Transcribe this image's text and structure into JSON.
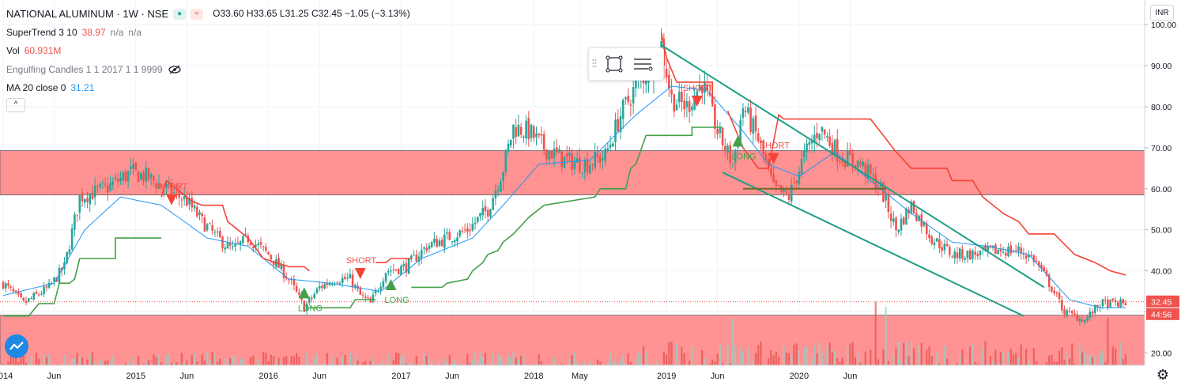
{
  "header": {
    "symbol": "NATIONAL ALUMINUM",
    "interval": "1W",
    "exchange": "NSE",
    "ohlc": {
      "o": "O33.60",
      "h": "H33.65",
      "l": "L31.25",
      "c": "C32.45",
      "chg": "−1.05 (−3.13%)"
    }
  },
  "indicators": [
    {
      "name": "SuperTrend 3 10",
      "value1": "38.97",
      "value2": "n/a",
      "value3": "n/a"
    },
    {
      "name": "Vol",
      "value1": "60.931M"
    },
    {
      "name": "Engulfing Candles 1 1 2017 1 1 9999"
    },
    {
      "name": "MA 20 close 0",
      "value1": "31.21"
    }
  ],
  "currency": "INR",
  "colors": {
    "up": "#26a69a",
    "down": "#ef5350",
    "zone": "#ff7f7f",
    "ma": "#2196f3",
    "trendline": "#1f9f86",
    "st_up": "#43a047",
    "st_down": "#f44336"
  },
  "price_labels": {
    "last": "32.45",
    "countdown": "44:56"
  },
  "chart_data": {
    "type": "candlestick",
    "y_axis": {
      "min": 17,
      "max": 101,
      "ticks": [
        "100.00",
        "90.00",
        "80.00",
        "70.00",
        "60.00",
        "50.00",
        "40.00",
        "30.00",
        "20.00"
      ]
    },
    "x_axis": {
      "labels": [
        "2014",
        "Jun",
        "2015",
        "Jun",
        "2016",
        "Jun",
        "2017",
        "Jun",
        "2018",
        "May",
        "2019",
        "Jun",
        "2020",
        "Jun"
      ]
    },
    "close_anchors": [
      [
        0,
        37
      ],
      [
        8,
        32
      ],
      [
        18,
        36
      ],
      [
        24,
        41
      ],
      [
        30,
        58
      ],
      [
        40,
        60
      ],
      [
        50,
        64
      ],
      [
        56,
        63
      ],
      [
        64,
        60
      ],
      [
        72,
        57
      ],
      [
        78,
        52
      ],
      [
        84,
        48
      ],
      [
        90,
        45
      ],
      [
        96,
        48
      ],
      [
        104,
        44
      ],
      [
        112,
        38
      ],
      [
        118,
        31
      ],
      [
        124,
        36
      ],
      [
        130,
        38
      ],
      [
        136,
        38
      ],
      [
        140,
        34
      ],
      [
        144,
        32
      ],
      [
        150,
        40
      ],
      [
        158,
        41
      ],
      [
        166,
        46
      ],
      [
        174,
        48
      ],
      [
        182,
        50
      ],
      [
        190,
        55
      ],
      [
        196,
        65
      ],
      [
        200,
        75
      ],
      [
        206,
        74
      ],
      [
        212,
        70
      ],
      [
        220,
        67
      ],
      [
        228,
        66
      ],
      [
        236,
        68
      ],
      [
        242,
        78
      ],
      [
        248,
        85
      ],
      [
        254,
        90
      ],
      [
        258,
        95
      ],
      [
        262,
        82
      ],
      [
        268,
        80
      ],
      [
        274,
        86
      ],
      [
        280,
        74
      ],
      [
        286,
        66
      ],
      [
        290,
        80
      ],
      [
        296,
        72
      ],
      [
        302,
        60
      ],
      [
        308,
        58
      ],
      [
        314,
        68
      ],
      [
        320,
        75
      ],
      [
        328,
        68
      ],
      [
        336,
        66
      ],
      [
        344,
        60
      ],
      [
        350,
        50
      ],
      [
        356,
        56
      ],
      [
        364,
        48
      ],
      [
        372,
        44
      ],
      [
        380,
        44
      ],
      [
        390,
        45
      ],
      [
        398,
        45
      ],
      [
        404,
        43
      ],
      [
        410,
        37
      ],
      [
        416,
        30
      ],
      [
        424,
        28
      ],
      [
        430,
        32
      ]
    ],
    "ma_anchors": [
      [
        0,
        34
      ],
      [
        20,
        37
      ],
      [
        32,
        50
      ],
      [
        46,
        58
      ],
      [
        62,
        56
      ],
      [
        80,
        48
      ],
      [
        96,
        46
      ],
      [
        112,
        38
      ],
      [
        128,
        37
      ],
      [
        148,
        35
      ],
      [
        164,
        43
      ],
      [
        184,
        48
      ],
      [
        196,
        56
      ],
      [
        210,
        66
      ],
      [
        230,
        67
      ],
      [
        248,
        78
      ],
      [
        262,
        85
      ],
      [
        276,
        84
      ],
      [
        290,
        74
      ],
      [
        300,
        66
      ],
      [
        312,
        63
      ],
      [
        326,
        69
      ],
      [
        340,
        62
      ],
      [
        356,
        54
      ],
      [
        372,
        47
      ],
      [
        386,
        46
      ],
      [
        402,
        44
      ],
      [
        418,
        33
      ],
      [
        430,
        31
      ]
    ],
    "supertrend": [
      {
        "dir": "up",
        "pts": [
          [
            0,
            29
          ],
          [
            10,
            29
          ],
          [
            14,
            32
          ],
          [
            20,
            32
          ],
          [
            22,
            37
          ],
          [
            26,
            37
          ],
          [
            28,
            38
          ],
          [
            30,
            43
          ],
          [
            44,
            43
          ],
          [
            44,
            48
          ],
          [
            62,
            48
          ]
        ]
      },
      {
        "dir": "down",
        "pts": [
          [
            62,
            58
          ],
          [
            64,
            62
          ],
          [
            68,
            60
          ],
          [
            74,
            57
          ],
          [
            78,
            56
          ],
          [
            86,
            56
          ],
          [
            88,
            52
          ],
          [
            96,
            48
          ],
          [
            102,
            43
          ],
          [
            112,
            41
          ],
          [
            118,
            41
          ],
          [
            120,
            40
          ]
        ]
      },
      {
        "dir": "up",
        "pts": [
          [
            120,
            31
          ],
          [
            136,
            31
          ],
          [
            138,
            33
          ],
          [
            146,
            33
          ]
        ]
      },
      {
        "dir": "down",
        "pts": [
          [
            146,
            42
          ],
          [
            150,
            42
          ],
          [
            152,
            43
          ],
          [
            160,
            43
          ]
        ]
      },
      {
        "dir": "up",
        "pts": [
          [
            160,
            36
          ],
          [
            172,
            36
          ],
          [
            174,
            37
          ],
          [
            182,
            38
          ],
          [
            184,
            40
          ],
          [
            188,
            42
          ],
          [
            190,
            44
          ],
          [
            194,
            45
          ],
          [
            196,
            47
          ],
          [
            200,
            49
          ],
          [
            206,
            53
          ],
          [
            212,
            56
          ],
          [
            222,
            57
          ],
          [
            232,
            58
          ],
          [
            234,
            60
          ],
          [
            244,
            60
          ],
          [
            246,
            65
          ],
          [
            248,
            66
          ],
          [
            252,
            73
          ],
          [
            270,
            73
          ],
          [
            270,
            75
          ],
          [
            282,
            75
          ]
        ]
      },
      {
        "dir": "down",
        "pts": [
          [
            258,
            98
          ],
          [
            260,
            92
          ],
          [
            264,
            86
          ],
          [
            278,
            86
          ],
          [
            278,
            80
          ]
        ]
      },
      {
        "dir": "down",
        "pts": [
          [
            284,
            79
          ],
          [
            290,
            70
          ],
          [
            296,
            65
          ],
          [
            300,
            65
          ],
          [
            304,
            78
          ],
          [
            306,
            77
          ],
          [
            340,
            77
          ],
          [
            350,
            69
          ],
          [
            356,
            65
          ],
          [
            370,
            65
          ],
          [
            372,
            62
          ],
          [
            380,
            62
          ],
          [
            384,
            58
          ],
          [
            392,
            54
          ],
          [
            398,
            52
          ],
          [
            402,
            49
          ],
          [
            412,
            49
          ],
          [
            420,
            44
          ],
          [
            428,
            42
          ],
          [
            434,
            40
          ],
          [
            440,
            39
          ]
        ]
      }
    ],
    "signals": [
      {
        "type": "short",
        "x": 66,
        "price": 56,
        "text": "SHORT"
      },
      {
        "type": "long",
        "x": 118,
        "price": 36,
        "text": "LONG"
      },
      {
        "type": "short",
        "x": 140,
        "price": 38,
        "text": "SHORT"
      },
      {
        "type": "long",
        "x": 152,
        "price": 38,
        "text": "LONG"
      },
      {
        "type": "short",
        "x": 272,
        "price": 80,
        "text": "SHORT"
      },
      {
        "type": "long",
        "x": 288,
        "price": 73,
        "text": "LONG"
      },
      {
        "type": "short",
        "x": 302,
        "price": 66,
        "text": "SHORT"
      }
    ],
    "zones": [
      {
        "from": 58.5,
        "to": 69.3
      },
      {
        "from": 15,
        "to": 29.2
      }
    ],
    "trendlines": [
      {
        "from": [
          258,
          95
        ],
        "to": [
          408,
          36
        ]
      },
      {
        "from": [
          282,
          64
        ],
        "to": [
          400,
          29
        ]
      },
      {
        "from": [
          290,
          60
        ],
        "to": [
          346,
          60
        ]
      }
    ],
    "volume_spikes": [
      [
        286,
        10
      ],
      [
        342,
        13
      ],
      [
        346,
        12
      ],
      [
        433,
        10
      ]
    ]
  }
}
